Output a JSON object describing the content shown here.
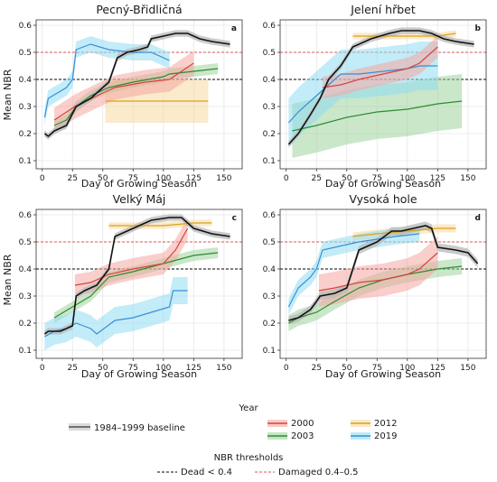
{
  "figure": {
    "ylabel": "Mean NBR",
    "xlabel": "Day of Growing Season"
  },
  "legend_year": {
    "title": "Year",
    "baseline_label": "1984–1999 baseline",
    "items": [
      {
        "label": "2000",
        "color": "#d6443b"
      },
      {
        "label": "2003",
        "color": "#2e8b2e"
      },
      {
        "label": "2012",
        "color": "#d9a21b"
      },
      {
        "label": "2019",
        "color": "#3a8fd6"
      }
    ]
  },
  "legend_nbr": {
    "title": "NBR thresholds",
    "items": [
      {
        "label": "Dead < 0.4",
        "color": "#000000"
      },
      {
        "label": "Damaged 0.4–0.5",
        "color": "#e05555"
      }
    ]
  },
  "colors": {
    "baseline": "#111111",
    "baseline_band": "#b8b8b8",
    "2000": "#d6443b",
    "2003": "#2e8b2e",
    "2012": "#d9a21b",
    "2019": "#3a8fd6",
    "band_2000": "#f4a6a0",
    "band_2003": "#9fd49f",
    "band_2012": "#f7d9a0",
    "band_2019": "#8fdcf3"
  },
  "chart_data": [
    {
      "type": "line",
      "title": "Pecný-Břidličná",
      "panel_letter": "a",
      "xlim": [
        -5,
        165
      ],
      "ylim": [
        0.07,
        0.62
      ],
      "xticks": [
        0,
        25,
        50,
        75,
        100,
        125,
        150
      ],
      "yticks": [
        0.1,
        0.2,
        0.3,
        0.4,
        0.5,
        0.6
      ],
      "grid": true,
      "thresholds": {
        "dead": 0.4,
        "damaged": 0.5
      },
      "series": [
        {
          "key": "baseline",
          "x": [
            2,
            5,
            10,
            20,
            28,
            40,
            55,
            62,
            70,
            80,
            87,
            90,
            100,
            110,
            120,
            130,
            140,
            155
          ],
          "y": [
            0.2,
            0.19,
            0.21,
            0.23,
            0.3,
            0.33,
            0.39,
            0.48,
            0.5,
            0.51,
            0.52,
            0.55,
            0.56,
            0.57,
            0.57,
            0.55,
            0.54,
            0.53
          ]
        },
        {
          "key": "2000",
          "x": [
            10,
            27,
            50,
            60,
            85,
            105,
            115,
            125
          ],
          "y": [
            0.25,
            0.3,
            0.35,
            0.37,
            0.39,
            0.4,
            0.43,
            0.46
          ]
        },
        {
          "key": "2003",
          "x": [
            10,
            20,
            28,
            40,
            55,
            75,
            100,
            105,
            125,
            145
          ],
          "y": [
            0.23,
            0.25,
            0.3,
            0.34,
            0.37,
            0.39,
            0.41,
            0.42,
            0.43,
            0.44
          ]
        },
        {
          "key": "2012",
          "x": [
            52,
            60,
            80,
            100,
            120,
            137
          ],
          "y": [
            0.32,
            0.32,
            0.32,
            0.32,
            0.32,
            0.32
          ]
        },
        {
          "key": "2019",
          "x": [
            2,
            5,
            20,
            25,
            28,
            40,
            55,
            75,
            90,
            105
          ],
          "y": [
            0.26,
            0.33,
            0.37,
            0.4,
            0.51,
            0.53,
            0.51,
            0.5,
            0.5,
            0.47
          ]
        }
      ]
    },
    {
      "type": "line",
      "title": "Jelení hřbet",
      "panel_letter": "b",
      "xlim": [
        -5,
        165
      ],
      "ylim": [
        0.07,
        0.62
      ],
      "xticks": [
        0,
        25,
        50,
        75,
        100,
        125,
        150
      ],
      "yticks": [
        0.1,
        0.2,
        0.3,
        0.4,
        0.5,
        0.6
      ],
      "grid": true,
      "thresholds": {
        "dead": 0.4,
        "damaged": 0.5
      },
      "series": [
        {
          "key": "baseline",
          "x": [
            2,
            10,
            20,
            28,
            35,
            45,
            55,
            70,
            85,
            95,
            110,
            120,
            130,
            140,
            155
          ],
          "y": [
            0.16,
            0.2,
            0.27,
            0.33,
            0.4,
            0.45,
            0.52,
            0.55,
            0.57,
            0.58,
            0.58,
            0.57,
            0.55,
            0.54,
            0.53
          ]
        },
        {
          "key": "2000",
          "x": [
            30,
            45,
            60,
            80,
            100,
            110,
            125
          ],
          "y": [
            0.37,
            0.38,
            0.4,
            0.42,
            0.44,
            0.46,
            0.52
          ]
        },
        {
          "key": "2003",
          "x": [
            5,
            15,
            25,
            50,
            75,
            100,
            125,
            145
          ],
          "y": [
            0.21,
            0.22,
            0.23,
            0.26,
            0.28,
            0.29,
            0.31,
            0.32
          ]
        },
        {
          "key": "2012",
          "x": [
            55,
            75,
            100,
            125,
            140
          ],
          "y": [
            0.56,
            0.56,
            0.56,
            0.56,
            0.57
          ]
        },
        {
          "key": "2019",
          "x": [
            2,
            10,
            25,
            35,
            45,
            60,
            80,
            100,
            110,
            125
          ],
          "y": [
            0.24,
            0.28,
            0.34,
            0.38,
            0.42,
            0.42,
            0.43,
            0.44,
            0.45,
            0.45
          ]
        }
      ]
    },
    {
      "type": "line",
      "title": "Velký Máj",
      "panel_letter": "c",
      "xlim": [
        -5,
        165
      ],
      "ylim": [
        0.07,
        0.62
      ],
      "xticks": [
        0,
        25,
        50,
        75,
        100,
        125,
        150
      ],
      "yticks": [
        0.1,
        0.2,
        0.3,
        0.4,
        0.5,
        0.6
      ],
      "grid": true,
      "thresholds": {
        "dead": 0.4,
        "damaged": 0.5
      },
      "series": [
        {
          "key": "baseline",
          "x": [
            2,
            5,
            15,
            25,
            28,
            35,
            45,
            55,
            60,
            75,
            90,
            105,
            115,
            125,
            140,
            155
          ],
          "y": [
            0.16,
            0.17,
            0.17,
            0.19,
            0.3,
            0.32,
            0.34,
            0.4,
            0.52,
            0.55,
            0.58,
            0.59,
            0.59,
            0.55,
            0.53,
            0.52
          ]
        },
        {
          "key": "2000",
          "x": [
            27,
            40,
            55,
            75,
            100,
            110,
            120
          ],
          "y": [
            0.34,
            0.35,
            0.38,
            0.4,
            0.42,
            0.47,
            0.55
          ]
        },
        {
          "key": "2003",
          "x": [
            10,
            25,
            40,
            55,
            75,
            100,
            125,
            145
          ],
          "y": [
            0.22,
            0.26,
            0.3,
            0.37,
            0.39,
            0.42,
            0.45,
            0.46
          ]
        },
        {
          "key": "2012",
          "x": [
            55,
            75,
            100,
            125,
            140
          ],
          "y": [
            0.56,
            0.56,
            0.56,
            0.57,
            0.57
          ]
        },
        {
          "key": "2019",
          "x": [
            2,
            10,
            20,
            28,
            40,
            45,
            60,
            75,
            90,
            105,
            108,
            120
          ],
          "y": [
            0.15,
            0.17,
            0.18,
            0.2,
            0.18,
            0.16,
            0.21,
            0.22,
            0.24,
            0.26,
            0.32,
            0.32
          ]
        }
      ]
    },
    {
      "type": "line",
      "title": "Vysoká hole",
      "panel_letter": "d",
      "xlim": [
        -5,
        165
      ],
      "ylim": [
        0.07,
        0.62
      ],
      "xticks": [
        0,
        25,
        50,
        75,
        100,
        125,
        150
      ],
      "yticks": [
        0.1,
        0.2,
        0.3,
        0.4,
        0.5,
        0.6
      ],
      "grid": true,
      "thresholds": {
        "dead": 0.4,
        "damaged": 0.5
      },
      "series": [
        {
          "key": "baseline",
          "x": [
            2,
            10,
            20,
            25,
            28,
            40,
            50,
            60,
            75,
            87,
            95,
            105,
            115,
            120,
            125,
            140,
            150,
            158
          ],
          "y": [
            0.21,
            0.22,
            0.25,
            0.28,
            0.3,
            0.31,
            0.33,
            0.47,
            0.5,
            0.54,
            0.54,
            0.55,
            0.56,
            0.55,
            0.48,
            0.47,
            0.46,
            0.42
          ]
        },
        {
          "key": "2000",
          "x": [
            27,
            40,
            60,
            80,
            100,
            110,
            125
          ],
          "y": [
            0.32,
            0.33,
            0.35,
            0.36,
            0.38,
            0.4,
            0.46
          ]
        },
        {
          "key": "2003",
          "x": [
            2,
            10,
            25,
            40,
            60,
            80,
            100,
            125,
            145
          ],
          "y": [
            0.2,
            0.22,
            0.24,
            0.28,
            0.33,
            0.36,
            0.38,
            0.4,
            0.41
          ]
        },
        {
          "key": "2012",
          "x": [
            55,
            75,
            100,
            125,
            140
          ],
          "y": [
            0.52,
            0.53,
            0.54,
            0.55,
            0.55
          ]
        },
        {
          "key": "2019",
          "x": [
            2,
            10,
            20,
            25,
            30,
            40,
            50,
            60,
            75,
            90,
            110
          ],
          "y": [
            0.26,
            0.33,
            0.37,
            0.4,
            0.47,
            0.48,
            0.49,
            0.5,
            0.51,
            0.52,
            0.53
          ]
        }
      ]
    }
  ]
}
